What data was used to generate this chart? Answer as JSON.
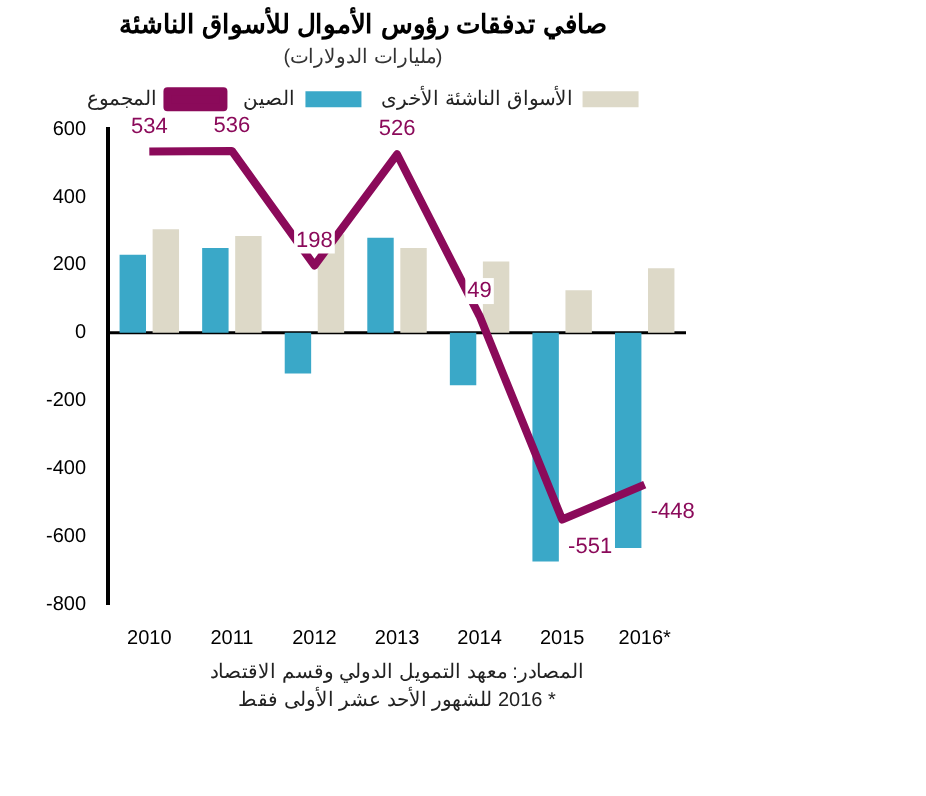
{
  "chart_data": {
    "type": "bar",
    "title": "صافي تدفقات رؤوس الأموال للأسواق الناشئة",
    "subtitle": "(مليارات الدولارات)",
    "categories": [
      "2010",
      "2011",
      "2012",
      "2013",
      "2014",
      "2015",
      "2016*"
    ],
    "series": [
      {
        "name": "الصين",
        "color": "#3aa8c8",
        "values": [
          230,
          250,
          -120,
          280,
          -155,
          -675,
          -635
        ]
      },
      {
        "name": "الأسواق الناشئة الأخرى",
        "color": "#ddd9c8",
        "values": [
          305,
          285,
          290,
          250,
          210,
          125,
          190
        ]
      },
      {
        "name": "المجموع",
        "type": "line",
        "color": "#8b0a5a",
        "values": [
          534,
          536,
          198,
          526,
          49,
          -551,
          -448
        ],
        "value_labels": [
          "534",
          "536",
          "198",
          "526",
          "49",
          "-551",
          "-448"
        ]
      }
    ],
    "ylim": [
      -800,
      600
    ],
    "yticks": [
      -800,
      -600,
      -400,
      -200,
      0,
      200,
      400,
      600
    ],
    "grid": false,
    "ref_lines": [
      {
        "axis": "y",
        "value": 0,
        "color": "#000000"
      }
    ],
    "legend": "top",
    "marker": "none",
    "annotations": [
      "المصادر: معهد التمويل الدولي وقسم الاقتصاد",
      "* 2016 للشهور الأحد عشر الأولى فقط"
    ]
  }
}
